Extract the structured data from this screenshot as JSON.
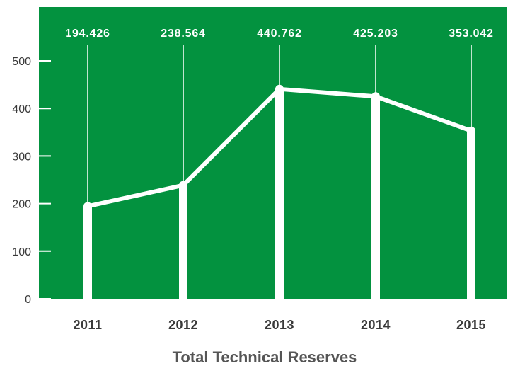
{
  "chart_data": {
    "type": "line",
    "title": "Total Technical Reserves",
    "categories": [
      "2011",
      "2012",
      "2013",
      "2014",
      "2015"
    ],
    "series": [
      {
        "values": [
          194.426,
          238.564,
          440.762,
          425.203,
          353.042
        ]
      }
    ],
    "data_labels": [
      "194.426",
      "238.564",
      "440.762",
      "425.203",
      "353.042"
    ],
    "yticks": [
      "0",
      "100",
      "200",
      "300",
      "400",
      "500"
    ],
    "ylim": [
      0,
      500
    ],
    "grid": false,
    "colors": {
      "background": "#03923f",
      "line": "#ffffff",
      "text": "#3a3a3a",
      "title": "#555555"
    }
  }
}
